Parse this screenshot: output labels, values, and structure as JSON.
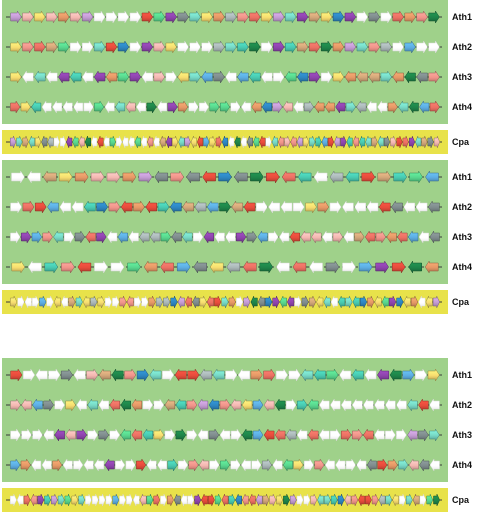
{
  "colors": {
    "ath_band": "#9fd18a",
    "cpa_band": "#e8e24a",
    "backbone": "#3a3a3a",
    "palette": [
      "#c39bd3",
      "#f7dc6f",
      "#76d7c4",
      "#f1948a",
      "#5dade2",
      "#e74c3c",
      "#58d68d",
      "#d2a679",
      "#8e44ad",
      "#aab7b8",
      "#e59866",
      "#48c9b0",
      "#f5b7b1",
      "#2e86c1",
      "#ec7063",
      "#1e8449",
      "#7f8c8d",
      "#ffffff"
    ]
  },
  "panels": [
    {
      "tracks": [
        {
          "label": "Ath1",
          "kind": "ath",
          "genes": "18+12+1+12+10+12+18+17+17+17+17+5+6+8+16+2+1+10+9+3+14+1+0+2+8+7+1+13+8+17+16+17+14+10+3+15"
        },
        {
          "label": "Ath2",
          "kind": "ath",
          "genes": "1+3+14+7+6+17+17+2+5+13+17+8+12+1+17+17+17+9+2+11+15+17+8+11+7+14+15+10+0+2+3+9+17+4+17+17"
        },
        {
          "label": "Ath3",
          "kind": "ath",
          "genes": "1-17-2-17-8-11-17-8-10+6+8-17+12+17-1+2-4+16-17-4-11-17+17-6-13+8+17+1-10-7-7+2-10-15-16+3"
        },
        {
          "label": "Ath4",
          "kind": "ath",
          "genes": "14+1-11-17-17-17-17+17+6-17-2-12-17+15-17+8+10+17+17+6+6+17-17-10-13+0-12-17+9-10-10-8+2-9-17-17+10-2-15-4+14"
        },
        {
          "label": "Cpa",
          "kind": "cpa",
          "genes": "0+2+7-2+1-16-9+17+17-8-6-12-15-17-5-17+6+17-17-17-6-17-3-17-7-8+1-2+0-1-5+4+1+14-13-17-15-17-16-6-5+17-2-3+12-3-0+1+2+11-4+5-0+8-11-3-11-2+7-2+16+12+5+14+8-2+7+16+12"
        }
      ]
    },
    {
      "tracks": [
        {
          "label": "Ath1",
          "kind": "ath",
          "genes": "17-17-7+1+10+12+12+10+0-16+3-16-5+13-16+15+5-14-11-17-9-11+5+7+11+6-4"
        },
        {
          "label": "Ath2",
          "kind": "ath",
          "genes": "17+14+5-4-17-17-11+13+3-5+10-5+11-13-7-9-4+15-7-5+17-17-17+17+1+10+17-17-17-17-5-16-17-17-16"
        },
        {
          "label": "Ath3",
          "kind": "ath",
          "genes": "17+8+4+3-2+17+16-14+8-17-4-17-9-9+6-16-2+17-8-17-17+8+16-4+17-17-5-12-12-17+12-17+7-14+3-10-14-4-17-16"
        },
        {
          "label": "Ath4",
          "kind": "ath",
          "genes": "1-17+11+3-5+17+17+6-10-14+4-16-1-9-14+15-17-14-17+16+17+4+8+5-15-10"
        },
        {
          "label": "Cpa",
          "kind": "cpa",
          "genes": "1+17-17+17+4+17-1-17+7+2-1+9+1+17+17+3-3+17+17+10+9+9+13-0-14-16+1-14+5+2+10+17+0-15-16+13+8-6-8+17+16+7-1-2-17-11+2-11+13+10-1-6+8+13-1+10-17-1+0"
        }
      ]
    },
    {
      "tracks": [
        {
          "label": "Ath1",
          "kind": "ath",
          "genes": "5+17-17+17+16-17+12-7-15+3+13-2+17-5+5-9-2+17-17+10+14+17+17-2-11+6-17-11-17-8-15+4+17+1"
        },
        {
          "label": "Ath2",
          "kind": "ath",
          "genes": "12-12-4+16+17+1-17-2-17-14-15-10+17+17-7-11+3-0-13+3-12-1+4-12-15+17+11-6-17-17-17-17-17-17-17-17-2-5-17"
        },
        {
          "label": "Ath3",
          "kind": "ath",
          "genes": "17+17+17-17-8-12+8+17+16+17-6-14-11+1+17+15+17-17+16-17+17-15+4-5-14-9-17-14-17+17+14+3-14-17+17+17-0+16+2"
        },
        {
          "label": "Ath4",
          "kind": "ath",
          "genes": "4+10-17-17+10-17+17-17-17-8+17+17+5-17-17+11+17+3-12+17+6+17-17+17+9-17-6+1+17+3-17-17+17-17-16+5+10+2-12-16-17"
        },
        {
          "label": "Cpa",
          "kind": "cpa",
          "genes": "17-17+14-3+8+11+0+2+6+1+2+17+17+17+17+4+17+17-17-12+6+14+17+10-16-17+17+8-5+5+6-14+11-13-3-14-0+7+12+1+15+0+17+17+12-2+2+11+13-12+3-5+5+3-9+2-1+17+2-7+17+6+15"
        }
      ]
    }
  ]
}
